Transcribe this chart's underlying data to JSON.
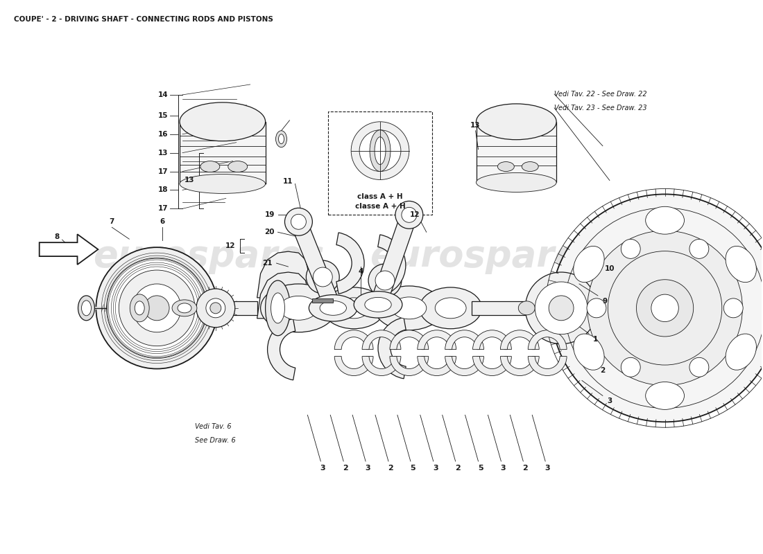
{
  "title": "COUPE' - 2 - DRIVING SHAFT - CONNECTING RODS AND PISTONS",
  "title_fontsize": 7.5,
  "bg_color": "#ffffff",
  "line_color": "#1a1a1a",
  "ref_text_1": "Vedi Tav. 22 - See Draw. 22",
  "ref_text_2": "Vedi Tav. 23 - See Draw. 23",
  "ref_text_3": "Vedi Tav. 6",
  "ref_text_4": "See Draw. 6",
  "callout_line1": "classe A + H",
  "callout_line2": "class A + H",
  "part_numbers_bottom": [
    "3",
    "2",
    "3",
    "2",
    "5",
    "3",
    "2",
    "5",
    "3",
    "2",
    "3"
  ]
}
